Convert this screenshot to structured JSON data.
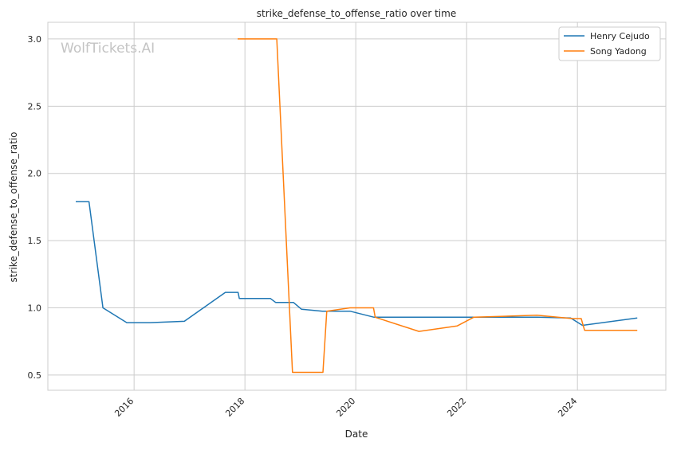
{
  "chart_data": {
    "type": "line",
    "title": "strike_defense_to_offense_ratio over time",
    "xlabel": "Date",
    "ylabel": "strike_defense_to_offense_ratio",
    "xlim": [
      "2014-06-12",
      "2025-08-06"
    ],
    "ylim": [
      0.387,
      3.124
    ],
    "x_ticks": [
      "2016",
      "2018",
      "2020",
      "2022",
      "2024"
    ],
    "y_ticks": [
      "0.5",
      "1.0",
      "1.5",
      "2.0",
      "2.5",
      "3.0"
    ],
    "grid": true,
    "legend_position": "top-right",
    "watermark": "WolfTickets.AI",
    "series": [
      {
        "name": "Henry Cejudo",
        "color": "#1f77b4",
        "x": [
          "2014-12-13",
          "2015-03-10",
          "2015-06-10",
          "2015-11-14",
          "2016-04-15",
          "2016-11-28",
          "2017-08-25",
          "2017-11-17",
          "2017-11-25",
          "2018-06-17",
          "2018-07-23",
          "2018-11-17",
          "2019-01-08",
          "2019-05-26",
          "2019-11-24",
          "2020-05-01",
          "2023-04-13",
          "2023-11-17",
          "2024-02-03",
          "2025-01-30"
        ],
        "y": [
          1.79,
          1.79,
          1.0,
          0.89,
          0.89,
          0.9,
          1.115,
          1.115,
          1.07,
          1.07,
          1.04,
          1.04,
          0.99,
          0.975,
          0.975,
          0.93,
          0.93,
          0.925,
          0.87,
          0.925
        ]
      },
      {
        "name": "Song Yadong",
        "color": "#ff7f0e",
        "x": [
          "2017-11-14",
          "2018-07-30",
          "2018-11-10",
          "2019-05-30",
          "2019-06-24",
          "2019-11-24",
          "2020-04-27",
          "2020-05-08",
          "2021-02-21",
          "2021-10-30",
          "2022-02-17",
          "2023-04-09",
          "2023-11-28",
          "2024-01-26",
          "2024-02-17",
          "2025-01-30"
        ],
        "y": [
          3.0,
          3.0,
          0.52,
          0.52,
          0.975,
          1.0,
          1.0,
          0.93,
          0.825,
          0.865,
          0.93,
          0.945,
          0.92,
          0.92,
          0.833,
          0.833
        ]
      }
    ]
  }
}
